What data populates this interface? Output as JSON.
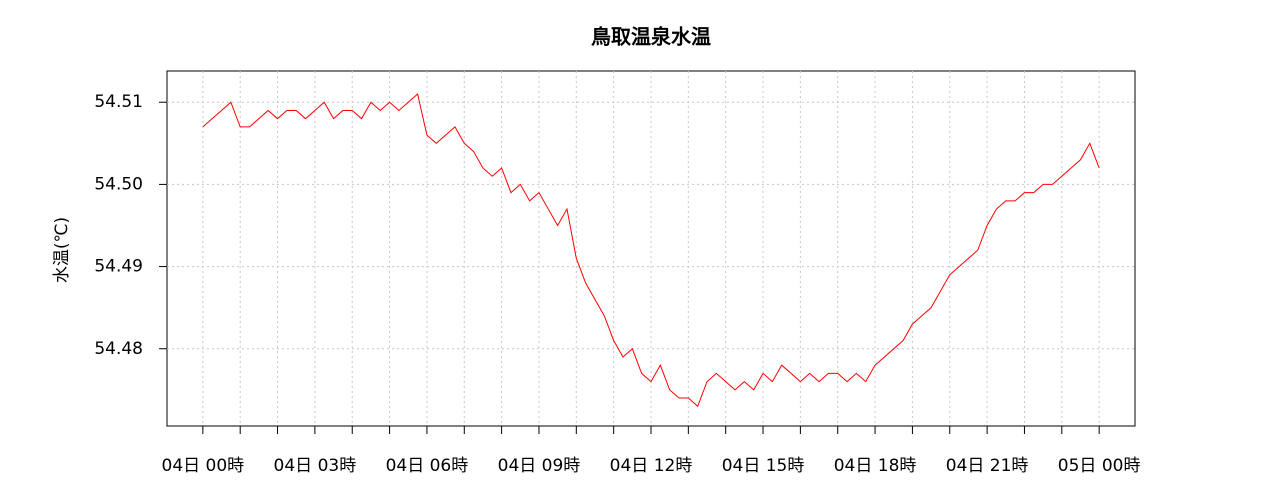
{
  "chart_data": {
    "type": "line",
    "title": "鳥取温泉水温",
    "ylabel": "水温(℃)",
    "color": "#ff0000",
    "grid": true,
    "x": [
      0,
      0.25,
      0.5,
      0.75,
      1,
      1.25,
      1.5,
      1.75,
      2,
      2.25,
      2.5,
      2.75,
      3,
      3.25,
      3.5,
      3.75,
      4,
      4.25,
      4.5,
      4.75,
      5,
      5.25,
      5.5,
      5.75,
      6,
      6.25,
      6.5,
      6.75,
      7,
      7.25,
      7.5,
      7.75,
      8,
      8.25,
      8.5,
      8.75,
      9,
      9.25,
      9.5,
      9.75,
      10,
      10.25,
      10.5,
      10.75,
      11,
      11.25,
      11.5,
      11.75,
      12,
      12.25,
      12.5,
      12.75,
      13,
      13.25,
      13.5,
      13.75,
      14,
      14.25,
      14.5,
      14.75,
      15,
      15.25,
      15.5,
      15.75,
      16,
      16.25,
      16.5,
      16.75,
      17,
      17.25,
      17.5,
      17.75,
      18,
      18.25,
      18.5,
      18.75,
      19,
      19.25,
      19.5,
      19.75,
      20,
      20.25,
      20.5,
      20.75,
      21,
      21.25,
      21.5,
      21.75,
      22,
      22.25,
      22.5,
      22.75,
      23,
      23.25,
      23.5,
      23.75,
      24
    ],
    "values": [
      54.507,
      54.508,
      54.509,
      54.51,
      54.507,
      54.507,
      54.508,
      54.509,
      54.508,
      54.509,
      54.509,
      54.508,
      54.509,
      54.51,
      54.508,
      54.509,
      54.509,
      54.508,
      54.51,
      54.509,
      54.51,
      54.509,
      54.51,
      54.511,
      54.506,
      54.505,
      54.506,
      54.507,
      54.505,
      54.504,
      54.502,
      54.501,
      54.502,
      54.499,
      54.5,
      54.498,
      54.499,
      54.497,
      54.495,
      54.497,
      54.491,
      54.488,
      54.486,
      54.484,
      54.481,
      54.479,
      54.48,
      54.477,
      54.476,
      54.478,
      54.475,
      54.474,
      54.474,
      54.473,
      54.476,
      54.477,
      54.476,
      54.475,
      54.476,
      54.475,
      54.477,
      54.476,
      54.478,
      54.477,
      54.476,
      54.477,
      54.476,
      54.477,
      54.477,
      54.476,
      54.477,
      54.476,
      54.478,
      54.479,
      54.48,
      54.481,
      54.483,
      54.484,
      54.485,
      54.487,
      54.489,
      54.49,
      54.491,
      54.492,
      54.495,
      54.497,
      54.498,
      54.498,
      54.499,
      54.499,
      54.5,
      54.5,
      54.501,
      54.502,
      54.503,
      54.505,
      54.502
    ],
    "xlim": [
      -0.96,
      24.96
    ],
    "xticks": [
      {
        "value": 0,
        "label": "04日 00時"
      },
      {
        "value": 3,
        "label": "04日 03時"
      },
      {
        "value": 6,
        "label": "04日 06時"
      },
      {
        "value": 9,
        "label": "04日 09時"
      },
      {
        "value": 12,
        "label": "04日 12時"
      },
      {
        "value": 15,
        "label": "04日 15時"
      },
      {
        "value": 18,
        "label": "04日 18時"
      },
      {
        "value": 21,
        "label": "04日 21時"
      },
      {
        "value": 24,
        "label": "05日 00時"
      }
    ],
    "xminor_ticks": [
      1,
      2,
      4,
      5,
      7,
      8,
      10,
      11,
      13,
      14,
      16,
      17,
      19,
      20,
      22,
      23
    ],
    "ylim": [
      54.4706,
      54.5138
    ],
    "yticks": [
      54.48,
      54.49,
      {
        "value": 54.5,
        "label": "54.50"
      },
      54.51
    ]
  }
}
